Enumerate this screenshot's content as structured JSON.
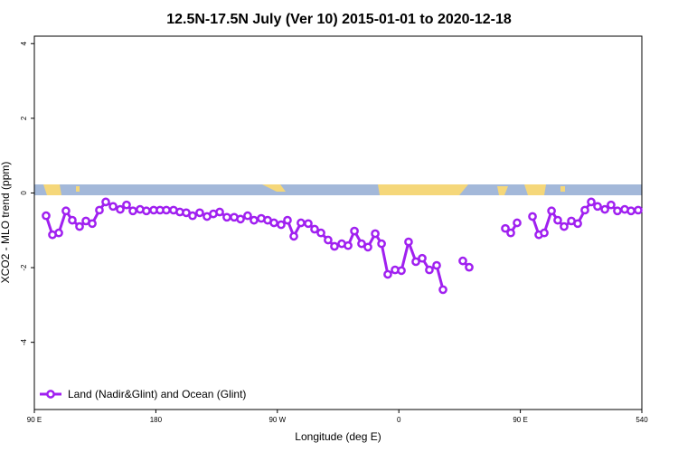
{
  "chart_data": {
    "type": "line",
    "title": "12.5N-17.5N July (Ver 10)   2015-01-01 to 2020-12-18",
    "x_label": "Longitude (deg E)",
    "y_label": "XCO2 - MLO trend (ppm)",
    "x": [
      98.7,
      103.4,
      108.1,
      113.4,
      118.1,
      123.5,
      128.2,
      132.9,
      138.2,
      142.9,
      148.3,
      153.6,
      158.3,
      163.0,
      168.3,
      173.0,
      178.4,
      183.1,
      187.8,
      193.1,
      197.8,
      202.5,
      207.2,
      212.5,
      217.9,
      222.6,
      227.3,
      232.6,
      238.0,
      242.7,
      248.0,
      252.7,
      258.1,
      262.8,
      267.5,
      272.8,
      277.5,
      282.2,
      287.5,
      292.9,
      297.6,
      302.3,
      307.6,
      312.3,
      317.7,
      322.4,
      327.1,
      332.4,
      337.1,
      342.5,
      347.2,
      351.8,
      357.2,
      361.9,
      367.2,
      372.6,
      377.3,
      382.6,
      388.0,
      392.7,
      400.0,
      407.4,
      412.1,
      425.0,
      438.9,
      442.9,
      447.6,
      453.0,
      459.0,
      463.7,
      467.7,
      473.1,
      477.7,
      482.4,
      487.8,
      492.5,
      497.8,
      502.5,
      507.2,
      512.6,
      517.2,
      521.9,
      527.3,
      532.0,
      537.3
    ],
    "series": [
      {
        "name": "Land (Nadir&Glint) and Ocean (Glint)",
        "color": "#a020f0",
        "values": [
          -0.61,
          -1.12,
          -1.07,
          -0.48,
          -0.73,
          -0.9,
          -0.75,
          -0.82,
          -0.46,
          -0.24,
          -0.36,
          -0.44,
          -0.32,
          -0.48,
          -0.44,
          -0.48,
          -0.46,
          -0.46,
          -0.46,
          -0.46,
          -0.51,
          -0.53,
          -0.61,
          -0.53,
          -0.63,
          -0.56,
          -0.51,
          -0.65,
          -0.65,
          -0.7,
          -0.61,
          -0.73,
          -0.68,
          -0.73,
          -0.8,
          -0.85,
          -0.73,
          -1.16,
          -0.8,
          -0.82,
          -0.97,
          -1.07,
          -1.26,
          -1.43,
          -1.36,
          -1.41,
          -1.02,
          -1.36,
          -1.45,
          -1.09,
          -1.36,
          -2.18,
          -2.06,
          -2.08,
          -1.31,
          -1.84,
          -1.75,
          -2.06,
          -1.94,
          -2.59,
          null,
          -1.82,
          -1.99,
          null,
          -0.95,
          -1.07,
          -0.8,
          null,
          -0.63,
          -1.12,
          -1.07,
          -0.48,
          -0.73,
          -0.9,
          -0.75,
          -0.82,
          -0.46,
          -0.24,
          -0.36,
          -0.44,
          -0.32,
          -0.48,
          -0.44,
          -0.48,
          -0.46
        ]
      }
    ],
    "xlim": [
      90,
      540
    ],
    "xticks": [
      {
        "value": 90,
        "label": "90 E"
      },
      180,
      {
        "value": 270,
        "label": "90 W"
      },
      {
        "value": 360,
        "label": "0"
      },
      {
        "value": 450,
        "label": "90 E"
      },
      540
    ],
    "ylim": [
      -5.8,
      4.2
    ],
    "yticks": [
      4,
      2,
      0,
      -2,
      -4
    ],
    "legend": "bottom-left"
  }
}
